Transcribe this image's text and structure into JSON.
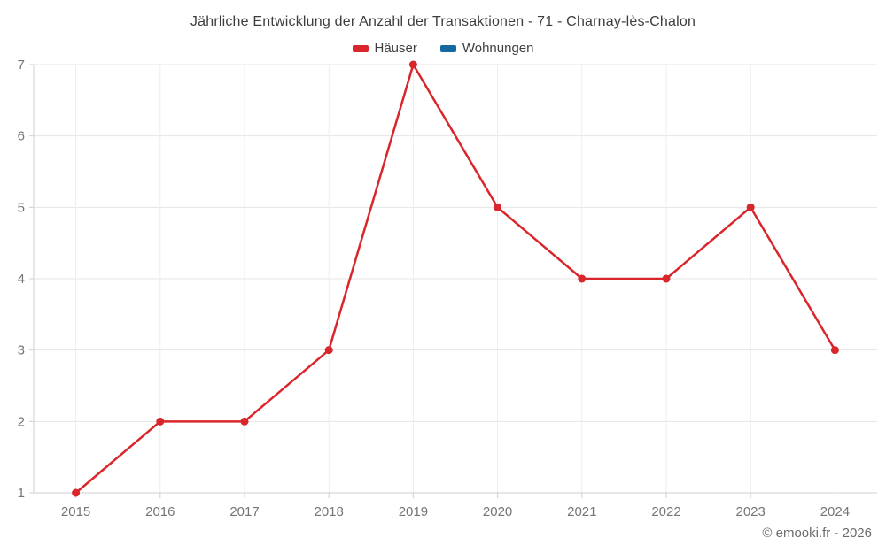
{
  "title": "Jährliche Entwicklung der Anzahl der Transaktionen - 71 - Charnay-lès-Chalon",
  "legend": [
    {
      "label": "Häuser",
      "color": "#d9262b"
    },
    {
      "label": "Wohnungen",
      "color": "#15699e"
    }
  ],
  "footer": "© emooki.fr - 2026",
  "chart_data": {
    "type": "line",
    "title": "Jährliche Entwicklung der Anzahl der Transaktionen - 71 - Charnay-lès-Chalon",
    "categories": [
      "2015",
      "2016",
      "2017",
      "2018",
      "2019",
      "2020",
      "2021",
      "2022",
      "2023",
      "2024"
    ],
    "series": [
      {
        "name": "Häuser",
        "color": "#d9262b",
        "values": [
          1,
          2,
          2,
          3,
          7,
          5,
          4,
          4,
          5,
          3
        ]
      },
      {
        "name": "Wohnungen",
        "color": "#15699e",
        "values": []
      }
    ],
    "xlabel": "",
    "ylabel": "",
    "ylim": [
      1,
      7
    ],
    "yticks": [
      1,
      2,
      3,
      4,
      5,
      6,
      7
    ],
    "grid": true,
    "legend_position": "top",
    "markers": true
  }
}
